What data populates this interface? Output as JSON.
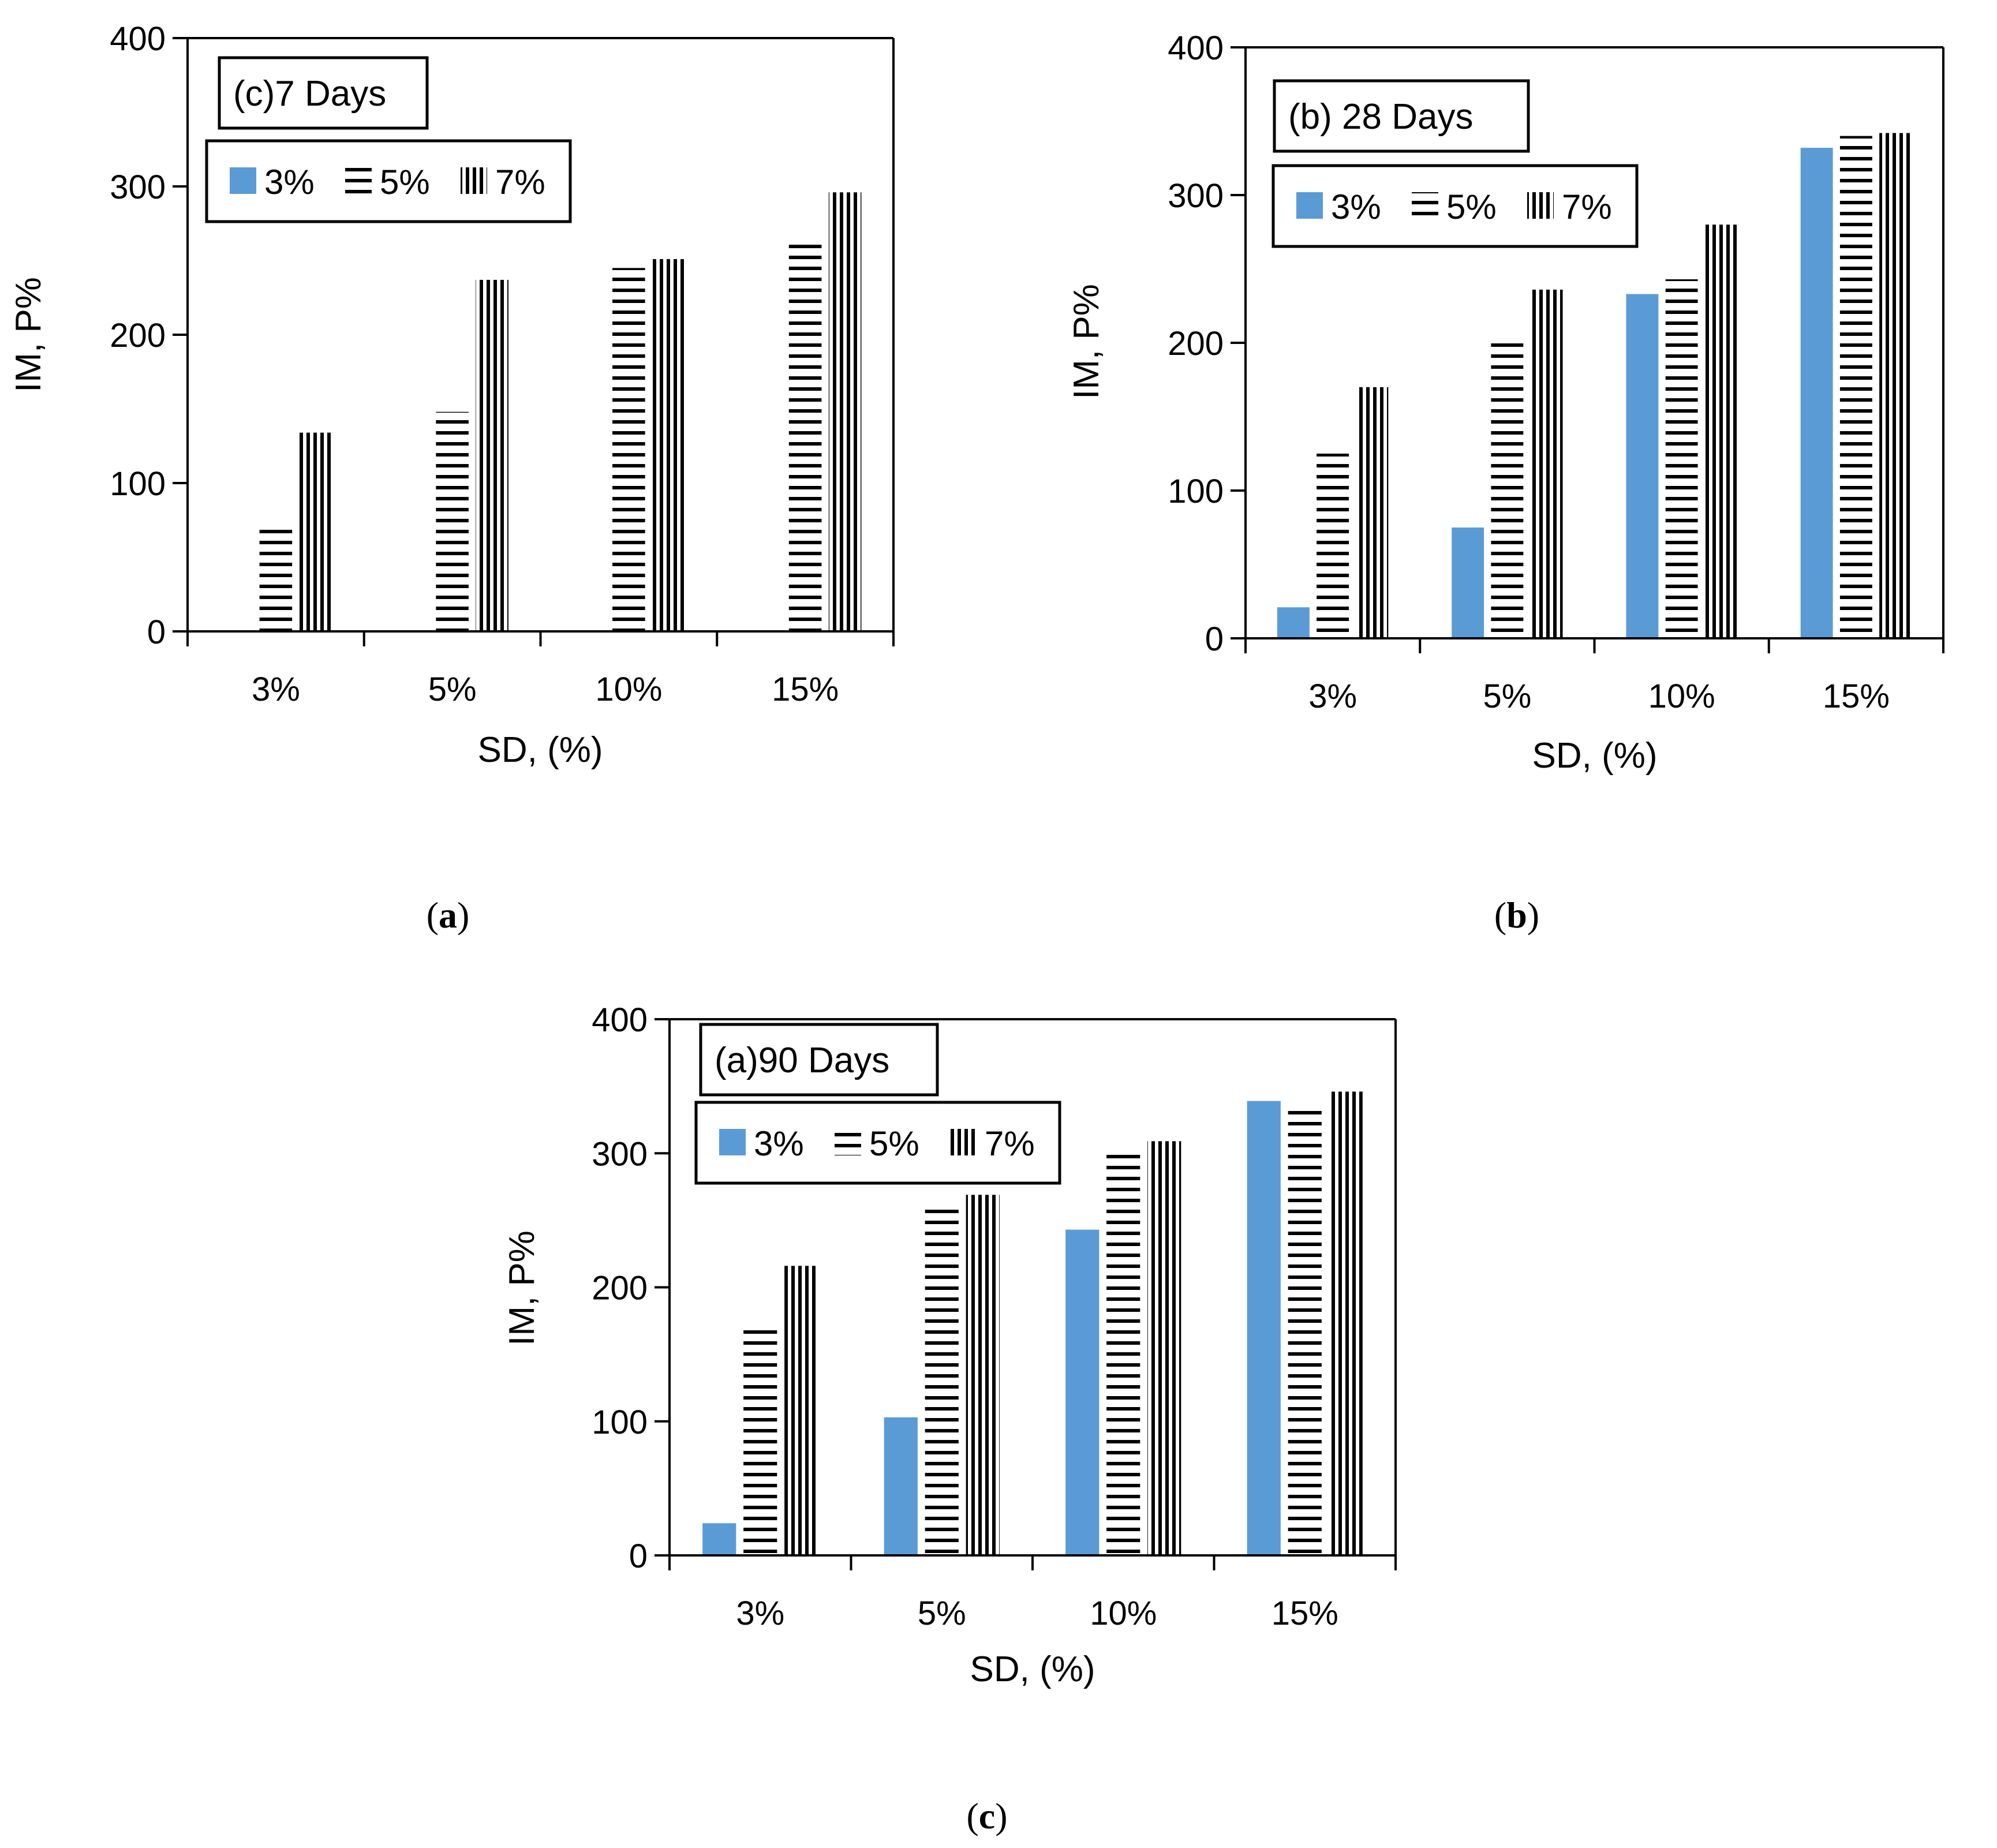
{
  "figure": {
    "captions": [
      {
        "pre": "(",
        "bold": "a",
        "post": ")"
      },
      {
        "pre": "(",
        "bold": "b",
        "post": ")"
      },
      {
        "pre": "(",
        "bold": "c",
        "post": ")"
      }
    ]
  },
  "chart_data": [
    {
      "type": "bar",
      "title": "(c)7 Days",
      "xlabel": "SD, (%)",
      "ylabel": "IM, P%",
      "ylim": [
        0,
        400
      ],
      "yticks": [
        0,
        100,
        200,
        300,
        400
      ],
      "categories": [
        "3%",
        "5%",
        "10%",
        "15%"
      ],
      "legend_position": "top-left",
      "series": [
        {
          "name": "3%",
          "pattern": "solid",
          "color": "#5b9bd5",
          "values": [
            0,
            0,
            0,
            0
          ]
        },
        {
          "name": "5%",
          "pattern": "horizontal-lines",
          "color": "#000000",
          "values": [
            70,
            148,
            245,
            265
          ]
        },
        {
          "name": "7%",
          "pattern": "vertical-lines",
          "color": "#000000",
          "values": [
            134,
            237,
            251,
            296
          ]
        }
      ]
    },
    {
      "type": "bar",
      "title": "(b) 28 Days",
      "xlabel": "SD, (%)",
      "ylabel": "IM, P%",
      "ylim": [
        0,
        400
      ],
      "yticks": [
        0,
        100,
        200,
        300,
        400
      ],
      "categories": [
        "3%",
        "5%",
        "10%",
        "15%"
      ],
      "legend_position": "top-left",
      "series": [
        {
          "name": "3%",
          "pattern": "solid",
          "color": "#5b9bd5",
          "values": [
            21,
            75,
            233,
            332
          ]
        },
        {
          "name": "5%",
          "pattern": "horizontal-lines",
          "color": "#000000",
          "values": [
            125,
            202,
            243,
            340
          ]
        },
        {
          "name": "7%",
          "pattern": "vertical-lines",
          "color": "#000000",
          "values": [
            170,
            236,
            280,
            342
          ]
        }
      ]
    },
    {
      "type": "bar",
      "title": "(a)90 Days",
      "xlabel": "SD, (%)",
      "ylabel": "IM, P%",
      "ylim": [
        0,
        400
      ],
      "yticks": [
        0,
        100,
        200,
        300,
        400
      ],
      "categories": [
        "3%",
        "5%",
        "10%",
        "15%"
      ],
      "legend_position": "top-left",
      "series": [
        {
          "name": "3%",
          "pattern": "solid",
          "color": "#5b9bd5",
          "values": [
            24,
            103,
            243,
            339
          ]
        },
        {
          "name": "5%",
          "pattern": "horizontal-lines",
          "color": "#000000",
          "values": [
            172,
            259,
            302,
            334
          ]
        },
        {
          "name": "7%",
          "pattern": "vertical-lines",
          "color": "#000000",
          "values": [
            216,
            269,
            309,
            346
          ]
        }
      ]
    }
  ]
}
